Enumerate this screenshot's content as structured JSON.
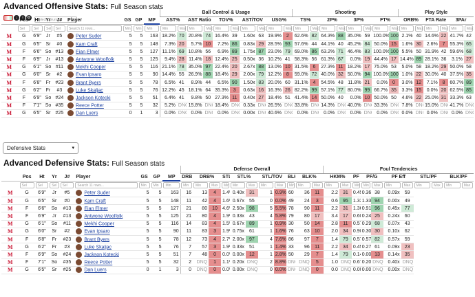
{
  "offense": {
    "title_bold": "Advanced Offensive Stats:",
    "title_rest": "Full Season stats",
    "select_placeholder": "Select Columns",
    "search_placeholder": "Search 11 rows...",
    "filter_min": "Min",
    "filter_max": "Max",
    "groups": [
      "Ball Control & Usage",
      "Shooting",
      "Play Style"
    ],
    "headers": [
      "Pos",
      "Ht",
      "Yr",
      "J#",
      "Player",
      "GS",
      "GP",
      "MP",
      "AST%",
      "AST Ratio",
      "TOV%",
      "AST/TOV",
      "USG%",
      "TS%",
      "2P%",
      "3P%",
      "FT%",
      "ORB%",
      "FTA Rate",
      "3PAr"
    ],
    "rows": [
      [
        "G",
        "6'9\"",
        "Jr",
        "#5",
        "Peter Suder",
        "5",
        "5",
        "163",
        "18.2%",
        "70",
        "20.8%",
        "74",
        "16.4%",
        "39",
        "1.60x",
        "63",
        "19.9%",
        "2",
        "62.6%",
        "82",
        "64.3%",
        "88",
        "35.0%",
        "59",
        "100.0%",
        "100",
        "2.1%",
        "40",
        "14.6%",
        "22",
        "41.7%",
        "42"
      ],
      [
        "G",
        "6'5\"",
        "Sr",
        "#0",
        "Kam Craft",
        "5",
        "5",
        "148",
        "7.3%",
        "20",
        "5.7%",
        "10",
        "7.2%",
        "86",
        "0.83x",
        "29",
        "28.5%",
        "93",
        "57.6%",
        "44",
        "44.1%",
        "40",
        "45.2%",
        "84",
        "50.0%",
        "15",
        "1.6%",
        "30",
        "2.6%",
        "7",
        "55.3%",
        "65"
      ],
      [
        "F",
        "6'6\"",
        "So",
        "#13",
        "Eian Elmer",
        "5",
        "5",
        "127",
        "11.1%",
        "69",
        "10.8%",
        "56",
        "6.9%",
        "89",
        "1.75x",
        "87",
        "23.0%",
        "79",
        "69.0%",
        "86",
        "63.2%",
        "71",
        "46.4%",
        "83",
        "100.0%",
        "100",
        "5.5%",
        "50",
        "31.9%",
        "42",
        "59.6%",
        "68"
      ],
      [
        "F",
        "6'9\"",
        "Jr",
        "#13",
        "Antwone Woolfolk",
        "5",
        "5",
        "125",
        "9.4%",
        "28",
        "11.4%",
        "18",
        "12.4%",
        "25",
        "0.50x",
        "36",
        "10.2%",
        "41",
        "58.3%",
        "56",
        "61.3%",
        "67",
        "0.0%",
        "19",
        "44.4%",
        "17",
        "14.4%",
        "89",
        "28.1%",
        "36",
        "3.1%",
        "27"
      ],
      [
        "G",
        "6'1\"",
        "So",
        "#11",
        "Mekhi Cooper",
        "5",
        "5",
        "116",
        "21.1%",
        "78",
        "35.0%",
        "97",
        "22.4%",
        "20",
        "2.67x",
        "88",
        "13.0%",
        "10",
        "31.5%",
        "6",
        "27.3%",
        "11",
        "18.2%",
        "17",
        "75.0%",
        "53",
        "5.0%",
        "58",
        "18.2%",
        "29",
        "50.0%",
        "58"
      ],
      [
        "G",
        "6'0\"",
        "Sr",
        "#2",
        "Evan Ipsaro",
        "5",
        "5",
        "90",
        "14.4%",
        "55",
        "26.9%",
        "88",
        "18.4%",
        "29",
        "2.00x",
        "79",
        "12.2%",
        "8",
        "59.0%",
        "72",
        "40.0%",
        "32",
        "50.0%",
        "94",
        "100.0%",
        "100",
        "1.0%",
        "22",
        "30.0%",
        "40",
        "37.5%",
        "35"
      ],
      [
        "F",
        "6'8\"",
        "Fr",
        "#23",
        "Brant Byers",
        "5",
        "5",
        "78",
        "6.5%",
        "41",
        "8.9%",
        "44",
        "6.5%",
        "90",
        "1.50x",
        "83",
        "20.0%",
        "60",
        "31.1%",
        "4",
        "54.5%",
        "48",
        "11.8%",
        "21",
        "0.0%",
        "0",
        "3.0%",
        "12",
        "7.1%",
        "8",
        "60.7%",
        "89"
      ],
      [
        "G",
        "6'2\"",
        "Fr",
        "#3",
        "Luke Skaljac",
        "5",
        "5",
        "76",
        "12.2%",
        "45",
        "18.1%",
        "64",
        "35.3%",
        "3",
        "0.63x",
        "16",
        "16.3%",
        "26",
        "82.2%",
        "99",
        "57.1%",
        "77",
        "80.0%",
        "99",
        "66.7%",
        "35",
        "3.3%",
        "15",
        "0.0%",
        "20",
        "62.5%",
        "85"
      ],
      [
        "F",
        "6'9\"",
        "So",
        "#24",
        "Jackson Kotecki",
        "5",
        "5",
        "51",
        "6.4%",
        "41",
        "9.8%",
        "50",
        "27.3%",
        "11",
        "0.40x",
        "27",
        "18.4%",
        "51",
        "41.4%",
        "14",
        "50.0%",
        "40",
        "0.0%",
        "10",
        "50.0%",
        "50",
        "4.6%",
        "22",
        "25.0%",
        "31",
        "33.3%",
        "63"
      ],
      [
        "F",
        "7'1\"",
        "So",
        "#35",
        "Reece Potter",
        "5",
        "5",
        "32",
        "5.2%",
        "DNQ",
        "15.8%",
        "DNQ",
        "18.4%",
        "DNQ",
        "0.33x",
        "DNQ",
        "26.5%",
        "DNQ",
        "33.8%",
        "DNQ",
        "14.3%",
        "DNQ",
        "40.0%",
        "DNQ",
        "33.3%",
        "DNQ",
        "7.8%",
        "DNQ",
        "15.0%",
        "DNQ",
        "41.7%",
        "DNQ"
      ],
      [
        "G",
        "6'5\"",
        "Sr",
        "#25",
        "Dan Luers",
        "0",
        "1",
        "3",
        "0.0%",
        "DNQ",
        "0.0%",
        "DNQ",
        "0.0%",
        "DNQ",
        "0.00x",
        "DNQ",
        "40.6%",
        "DNQ",
        "0.0%",
        "DNQ",
        "0.0%",
        "DNQ",
        "0.0%",
        "DNQ",
        "0.0%",
        "DNQ",
        "0.0%",
        "DNQ",
        "0.0%",
        "DNQ",
        "0.0%",
        "DNQ"
      ]
    ]
  },
  "dropdown": {
    "label": "Defensive Stats",
    "caret": "▾"
  },
  "defense": {
    "title_bold": "Advanced Defensive Stats:",
    "title_rest": "Full Season stats",
    "search_placeholder": "Search 11 rows...",
    "filter_min": "Min",
    "filter_max": "Max",
    "groups": [
      "Defense Overall",
      "Foul Tendencies"
    ],
    "headers": [
      "Pos",
      "Ht",
      "Yr",
      "J#",
      "Player",
      "GS",
      "GP",
      "MP",
      "DRB",
      "DRB%",
      "STL",
      "STL%",
      "STL/TOV",
      "BLK",
      "BLK%",
      "HKM%",
      "PF",
      "PF/G",
      "PF Eff",
      "STL/PF",
      "BLK/PF"
    ],
    "rows": [
      [
        "G",
        "6'9\"",
        "Jr",
        "#5",
        "Peter Suder",
        "5",
        "5",
        "163",
        "16",
        "12.5%",
        "13",
        "4",
        "1.4%",
        "32",
        "0.40x",
        "31",
        "1",
        "0.9%",
        "60",
        "2.3%",
        "36",
        "11",
        "2.2",
        "31",
        "0.45x",
        "38",
        "0.36x",
        "38",
        "0.09x",
        "59"
      ],
      [
        "G",
        "6'5\"",
        "Sr",
        "#0",
        "Kam Craft",
        "5",
        "5",
        "148",
        "11",
        "9.4%",
        "42",
        "4",
        "1.6%",
        "36",
        "0.67x",
        "55",
        "0",
        "0.0%",
        "49",
        "1.6%",
        "24",
        "3",
        "0.6",
        "95",
        "1.33x",
        "90",
        "1.33x",
        "94",
        "0.00x",
        "49"
      ],
      [
        "F",
        "6'6\"",
        "So",
        "#13",
        "Eian Elmer",
        "5",
        "5",
        "127",
        "21",
        "20.9%",
        "80",
        "10",
        "4.6%",
        "98",
        "2.50x",
        "98",
        "5",
        "5.5%",
        "78",
        "10.1%",
        "90",
        "11",
        "2.2",
        "31",
        "1.36x",
        "94",
        "0.91x",
        "96",
        "0.45x",
        "77"
      ],
      [
        "F",
        "6'9\"",
        "Jr",
        "#13",
        "Antwone Woolfolk",
        "5",
        "5",
        "125",
        "21",
        "20.9%",
        "80",
        "4",
        "1.9%",
        "67",
        "0.33x",
        "43",
        "4",
        "5.8%",
        "79",
        "7.7%",
        "80",
        "17",
        "3.4",
        "17",
        "0.60x",
        "61",
        "0.24x",
        "25",
        "0.24x",
        "60"
      ],
      [
        "G",
        "6'1\"",
        "So",
        "#11",
        "Mekhi Cooper",
        "5",
        "5",
        "116",
        "14",
        "19.4%",
        "83",
        "4",
        "1.5%",
        "53",
        "0.67x",
        "89",
        "1",
        "0.9%",
        "30",
        "3.8%",
        "50",
        "14",
        "2.8",
        "11",
        "0.57x",
        "56",
        "0.29x",
        "68",
        "0.07x",
        "43"
      ],
      [
        "G",
        "6'0\"",
        "Sr",
        "#2",
        "Evan Ipsaro",
        "5",
        "5",
        "90",
        "11",
        "15.4%",
        "83",
        "3",
        "1.9%",
        "47",
        "0.75x",
        "61",
        "1",
        "1.6%",
        "76",
        "3.5%",
        "63",
        "10",
        "2.0",
        "34",
        "0.90x",
        "80",
        "0.30x",
        "30",
        "0.10x",
        "62"
      ],
      [
        "F",
        "6'8\"",
        "Fr",
        "#23",
        "Brant Byers",
        "5",
        "5",
        "78",
        "12",
        "19.4%",
        "73",
        "4",
        "2.7%",
        "86",
        "2.00x",
        "97",
        "4",
        "7.6%",
        "86",
        "9.9%",
        "97",
        "7",
        "1.4",
        "79",
        "0.57x",
        "58",
        "0.57x",
        "82",
        "0.57x",
        "59"
      ],
      [
        "G",
        "6'2\"",
        "Fr",
        "#3",
        "Luke Skaljac",
        "5",
        "5",
        "76",
        "7",
        "12.5%",
        "57",
        "3",
        "1.9%",
        "65",
        "0.33x",
        "51",
        "1",
        "1.4%",
        "33",
        "7.3%",
        "96",
        "11",
        "2.2",
        "34",
        "0.45x",
        "44",
        "0.27x",
        "61",
        "0.09x",
        "23"
      ],
      [
        "F",
        "6'9\"",
        "So",
        "#24",
        "Jackson Kotecki",
        "5",
        "5",
        "51",
        "7",
        "15.1%",
        "48",
        "0",
        "0.0%",
        "13",
        "0.00x",
        "12",
        "1",
        "2.8%",
        "50",
        "2.8%",
        "29",
        "7",
        "1.4",
        "79",
        "0.14x",
        "8",
        "0.00x",
        "13",
        "0.14x",
        "35"
      ],
      [
        "F",
        "7'1\"",
        "So",
        "#35",
        "Reece Potter",
        "5",
        "5",
        "32",
        "2",
        "8.4%",
        "DNQ",
        "1",
        "1.1%",
        "DNQ",
        "0.20x",
        "DNQ",
        "2",
        "8.8%",
        "DNQ",
        "7.3%",
        "DNQ",
        "5",
        "1.0",
        "DNQ",
        "0.67x",
        "DNQ",
        "0.20x",
        "DNQ",
        "0.40x",
        "DNQ"
      ],
      [
        "G",
        "6'5\"",
        "Sr",
        "#25",
        "Dan Luers",
        "0",
        "1",
        "3",
        "0",
        "0.0%",
        "DNQ",
        "0",
        "0.0%",
        "DNQ",
        "0.00x",
        "DNQ",
        "0",
        "0.0%",
        "DNQ",
        "0.0%",
        "DNQ",
        "0",
        "0.0",
        "DNQ",
        "0.00x",
        "DNQ",
        "0.00x",
        "DNQ",
        "0.00x",
        "DNQ"
      ]
    ]
  },
  "colors": {
    "accent": "#c8102e",
    "link": "#1a3fa0",
    "high": "#9fd4b0",
    "low": "#e58e8e"
  }
}
